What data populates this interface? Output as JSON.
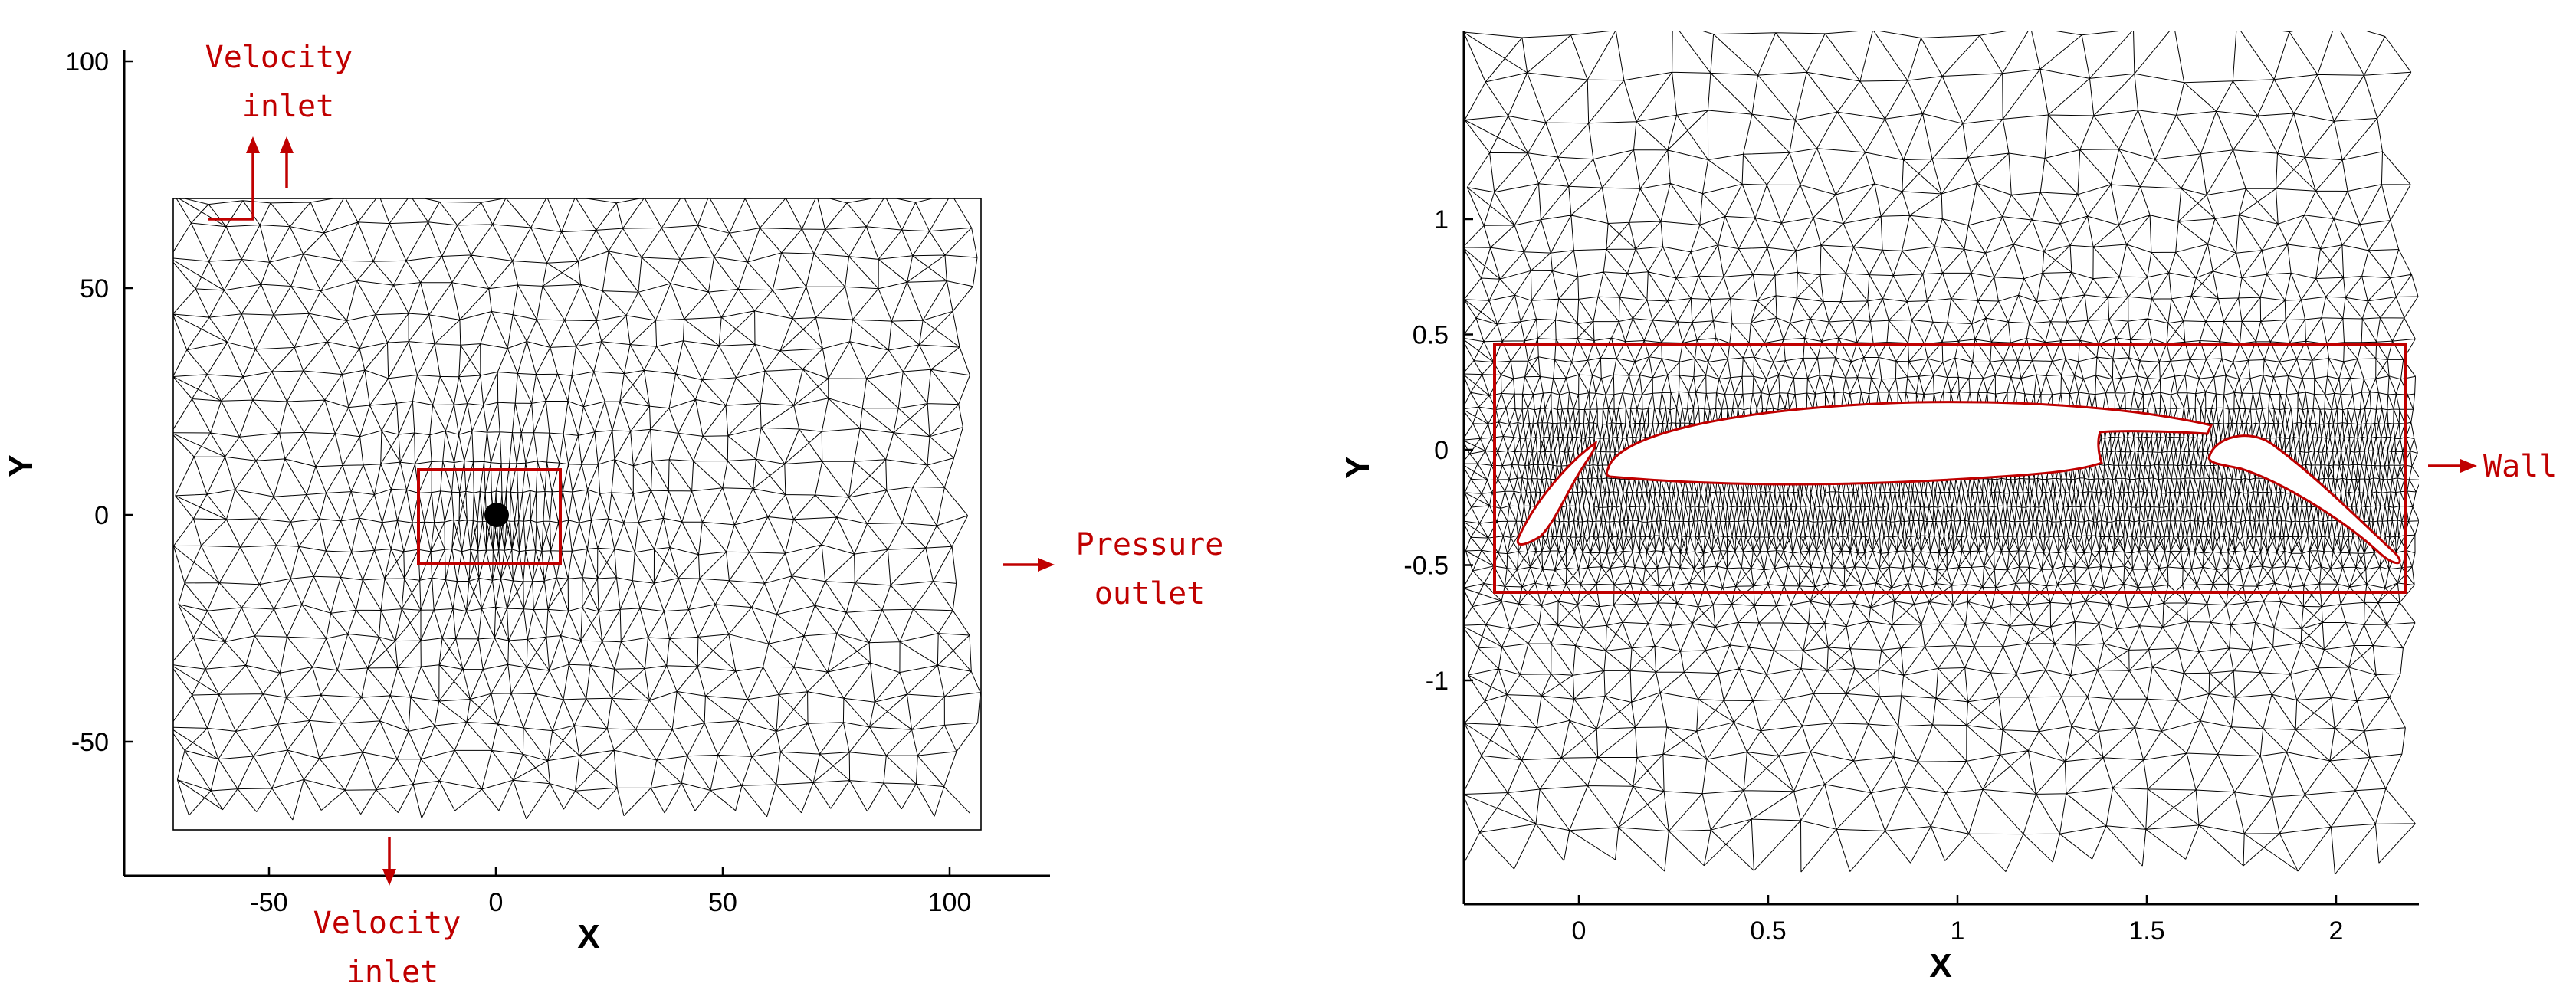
{
  "left_panel": {
    "x_axis_label": "X",
    "y_axis_label": "Y",
    "x_ticks": [
      {
        "value": -50,
        "label": "-50"
      },
      {
        "value": 0,
        "label": "0"
      },
      {
        "value": 50,
        "label": "50"
      },
      {
        "value": 100,
        "label": "100"
      }
    ],
    "y_ticks": [
      {
        "value": 100,
        "label": "100"
      },
      {
        "value": 50,
        "label": "50"
      },
      {
        "value": 0,
        "label": "0"
      },
      {
        "value": -50,
        "label": "-50"
      }
    ],
    "domain": {
      "x_min": -70,
      "x_max": 103,
      "y_min": -69,
      "y_max": 69
    },
    "refinement_box": {
      "x_min": -16,
      "x_max": 14,
      "y_min": -11,
      "y_max": 10
    },
    "annotations": {
      "top_inlet_line1": "Velocity",
      "top_inlet_line2": "inlet",
      "outlet_line1": "Pressure",
      "outlet_line2": "outlet",
      "bottom_inlet_line1": "Velocity",
      "bottom_inlet_line2": "inlet"
    }
  },
  "right_panel": {
    "x_axis_label": "X",
    "y_axis_label": "Y",
    "x_ticks": [
      {
        "value": 0,
        "label": "0"
      },
      {
        "value": 0.5,
        "label": "0.5"
      },
      {
        "value": 1,
        "label": "1"
      },
      {
        "value": 1.5,
        "label": "1.5"
      },
      {
        "value": 2,
        "label": "2"
      }
    ],
    "y_ticks": [
      {
        "value": 1,
        "label": "1"
      },
      {
        "value": 0.5,
        "label": "0.5"
      },
      {
        "value": 0,
        "label": "0"
      },
      {
        "value": -0.5,
        "label": "-0.5"
      },
      {
        "value": -1,
        "label": "-1"
      }
    ],
    "zoom_box": {
      "x_min": -0.23,
      "x_max": 2.2,
      "y_min": -0.38,
      "y_max": 0.27
    },
    "annotations": {
      "wall": "Wall"
    }
  },
  "colors": {
    "annotation": "#c00000",
    "mesh": "#000000",
    "background": "#ffffff"
  }
}
